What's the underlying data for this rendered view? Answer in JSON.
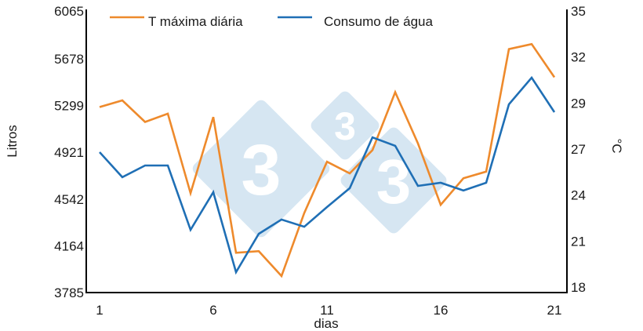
{
  "chart_data": {
    "type": "line",
    "title": "",
    "xlabel": "dias",
    "ylabel": "Litros",
    "ylabel_right": "°C",
    "x": [
      1,
      2,
      3,
      4,
      5,
      6,
      7,
      8,
      9,
      10,
      11,
      12,
      13,
      14,
      15,
      16,
      17,
      18,
      19,
      20,
      21
    ],
    "x_ticks": [
      "1",
      "6",
      "11",
      "16",
      "21"
    ],
    "x_tick_values": [
      1,
      6,
      11,
      16,
      21
    ],
    "ylim": [
      3785,
      6065
    ],
    "y_ticks": [
      "6065",
      "5678",
      "5299",
      "4921",
      "4542",
      "4164",
      "3785"
    ],
    "y_tick_values": [
      6065,
      5678,
      5299,
      4921,
      4542,
      4164,
      3785
    ],
    "ylim_right": [
      18,
      35
    ],
    "y_right_ticks": [
      "35",
      "32",
      "29",
      "27",
      "24",
      "21",
      "18"
    ],
    "grid": false,
    "legend_position": "top",
    "series": [
      {
        "name": "T máxima diária",
        "axis": "right",
        "color": "#ee8a2c",
        "values": [
          29.2,
          29.6,
          28.3,
          28.8,
          24.0,
          28.6,
          20.4,
          20.5,
          19.0,
          22.8,
          25.9,
          25.2,
          26.6,
          30.1,
          27.0,
          23.3,
          24.9,
          25.3,
          32.7,
          33.0,
          31.0
        ]
      },
      {
        "name": "Consumo de água",
        "axis": "left",
        "color": "#1f6fb5",
        "values": [
          4922,
          4719,
          4814,
          4814,
          4293,
          4598,
          3950,
          4261,
          4376,
          4318,
          4477,
          4630,
          5042,
          4973,
          4649,
          4674,
          4611,
          4674,
          5309,
          5525,
          5246
        ]
      }
    ],
    "watermark": {
      "glyph": "3",
      "color": "#d6e6f2"
    }
  }
}
